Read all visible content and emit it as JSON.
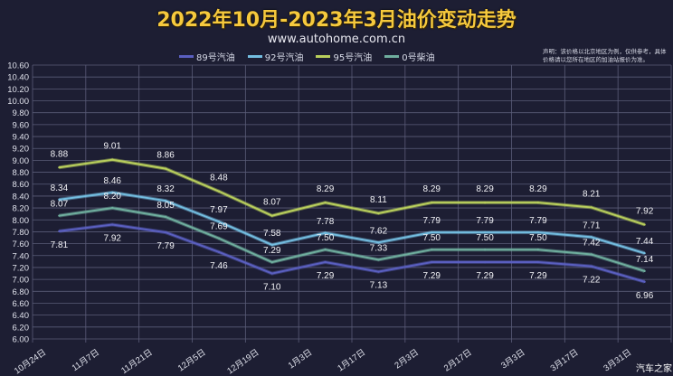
{
  "title": "2022年10月-2023年3月油价变动走势",
  "subtitle": "www.autohome.com.cn",
  "disclaimer": "声明：该价格以北京地区为例，仅供参考，具体价格请以您所在地区的加油站报价为准。",
  "watermark": "汽车之家",
  "chart_data": {
    "type": "line",
    "title": "2022年10月-2023年3月油价变动走势",
    "xlabel": "",
    "ylabel": "",
    "ylim": [
      6.0,
      10.6
    ],
    "yticks": [
      "6.00",
      "6.20",
      "6.40",
      "6.60",
      "6.80",
      "7.00",
      "7.20",
      "7.40",
      "7.60",
      "7.80",
      "8.00",
      "8.20",
      "8.40",
      "8.60",
      "8.80",
      "9.00",
      "9.20",
      "9.40",
      "9.60",
      "9.80",
      "10.00",
      "10.20",
      "10.40",
      "10.60"
    ],
    "grid": true,
    "legend_position": "top",
    "categories": [
      "10月24日",
      "11月7日",
      "11月21日",
      "12月5日",
      "12月19日",
      "1月3日",
      "1月17日",
      "2月3日",
      "2月17日",
      "3月3日",
      "3月17日",
      "3月31日"
    ],
    "series": [
      {
        "name": "89号汽油",
        "color": "#5a5fc0",
        "values": [
          7.81,
          7.92,
          7.79,
          7.46,
          7.1,
          7.29,
          7.13,
          7.29,
          7.29,
          7.29,
          7.22,
          6.96
        ]
      },
      {
        "name": "92号汽油",
        "color": "#73bde0",
        "values": [
          8.34,
          8.46,
          8.32,
          7.97,
          7.58,
          7.78,
          7.62,
          7.79,
          7.79,
          7.79,
          7.71,
          7.44
        ]
      },
      {
        "name": "95号汽油",
        "color": "#b9cf5c",
        "values": [
          8.88,
          9.01,
          8.86,
          8.48,
          8.07,
          8.29,
          8.11,
          8.29,
          8.29,
          8.29,
          8.21,
          7.92
        ]
      },
      {
        "name": "0号柴油",
        "color": "#6fae9e",
        "values": [
          8.07,
          8.2,
          8.05,
          7.69,
          7.29,
          7.5,
          7.33,
          7.5,
          7.5,
          7.5,
          7.42,
          7.14
        ]
      }
    ]
  }
}
